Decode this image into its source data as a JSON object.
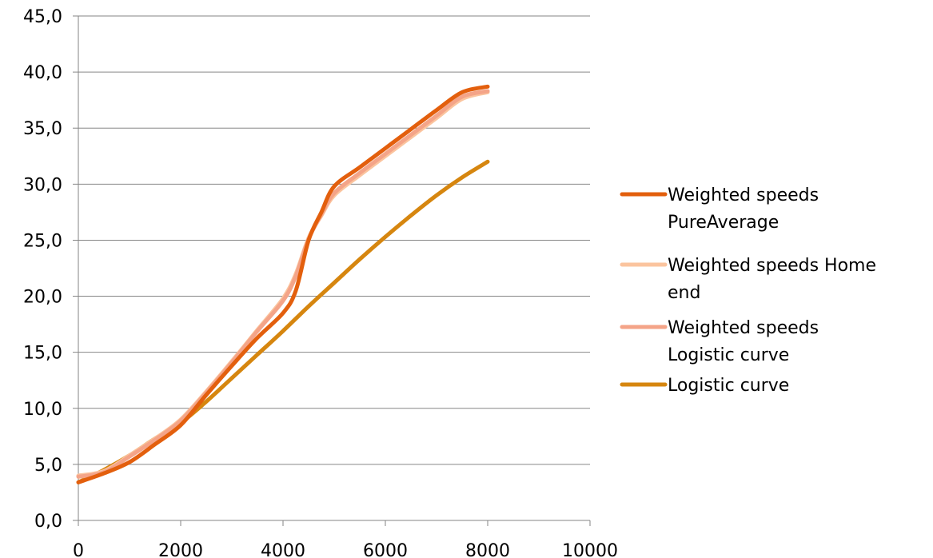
{
  "chart_data": {
    "type": "line",
    "title": "",
    "xlabel": "",
    "ylabel": "",
    "xlim": [
      0,
      10000
    ],
    "ylim": [
      0,
      45
    ],
    "x_ticks": [
      "0",
      "2000",
      "4000",
      "6000",
      "8000",
      "10000"
    ],
    "y_ticks": [
      "0,0",
      "5,0",
      "10,0",
      "15,0",
      "20,0",
      "25,0",
      "30,0",
      "35,0",
      "40,0",
      "45,0"
    ],
    "grid": "horizontal",
    "legend_position": "right",
    "series": [
      {
        "name": "Weighted speeds PureAverage",
        "legend_lines": [
          "Weighted speeds",
          "PureAverage"
        ],
        "color": "#E35F0D",
        "points": [
          [
            0,
            3.4
          ],
          [
            500,
            4.2
          ],
          [
            1000,
            5.2
          ],
          [
            1500,
            6.8
          ],
          [
            2000,
            8.5
          ],
          [
            2500,
            11.2
          ],
          [
            3000,
            13.8
          ],
          [
            3500,
            16.3
          ],
          [
            4000,
            18.5
          ],
          [
            4250,
            20.5
          ],
          [
            4500,
            25.0
          ],
          [
            4750,
            27.5
          ],
          [
            5000,
            29.8
          ],
          [
            5500,
            31.5
          ],
          [
            6000,
            33.2
          ],
          [
            6500,
            34.9
          ],
          [
            7000,
            36.6
          ],
          [
            7500,
            38.2
          ],
          [
            8000,
            38.7
          ]
        ]
      },
      {
        "name": "Weighted speeds Home end",
        "legend_lines": [
          "Weighted speeds Home",
          "end"
        ],
        "color": "#FBC49E",
        "points": [
          [
            0,
            4.0
          ],
          [
            500,
            4.4
          ],
          [
            1000,
            5.8
          ],
          [
            1500,
            7.3
          ],
          [
            2000,
            9.0
          ],
          [
            2500,
            11.5
          ],
          [
            3000,
            14.2
          ],
          [
            3500,
            17.0
          ],
          [
            4000,
            19.8
          ],
          [
            4250,
            22.0
          ],
          [
            4500,
            25.2
          ],
          [
            4750,
            27.2
          ],
          [
            5000,
            29.0
          ],
          [
            5500,
            30.8
          ],
          [
            6000,
            32.5
          ],
          [
            6500,
            34.2
          ],
          [
            7000,
            35.9
          ],
          [
            7500,
            37.6
          ],
          [
            8000,
            38.2
          ]
        ]
      },
      {
        "name": "Weighted speeds Logistic curve",
        "legend_lines": [
          "Weighted speeds",
          "Logistic curve"
        ],
        "color": "#F4A488",
        "points": [
          [
            0,
            3.9
          ],
          [
            500,
            4.3
          ],
          [
            1000,
            5.7
          ],
          [
            1500,
            7.2
          ],
          [
            2000,
            8.9
          ],
          [
            2500,
            11.4
          ],
          [
            3000,
            14.1
          ],
          [
            3500,
            16.9
          ],
          [
            4000,
            19.6
          ],
          [
            4250,
            21.8
          ],
          [
            4500,
            25.1
          ],
          [
            4750,
            27.3
          ],
          [
            5000,
            29.2
          ],
          [
            5500,
            31.0
          ],
          [
            6000,
            32.7
          ],
          [
            6500,
            34.4
          ],
          [
            7000,
            36.1
          ],
          [
            7500,
            37.8
          ],
          [
            8000,
            38.3
          ]
        ]
      },
      {
        "name": "Logistic curve",
        "legend_lines": [
          "Logistic curve"
        ],
        "color": "#D6860F",
        "points": [
          [
            0,
            3.4
          ],
          [
            500,
            4.5
          ],
          [
            1000,
            5.8
          ],
          [
            1500,
            7.3
          ],
          [
            2000,
            8.7
          ],
          [
            2500,
            10.6
          ],
          [
            3000,
            12.7
          ],
          [
            3500,
            14.8
          ],
          [
            4000,
            16.9
          ],
          [
            4500,
            19.1
          ],
          [
            5000,
            21.2
          ],
          [
            5500,
            23.3
          ],
          [
            6000,
            25.3
          ],
          [
            6500,
            27.2
          ],
          [
            7000,
            29.0
          ],
          [
            7500,
            30.6
          ],
          [
            8000,
            32.0
          ]
        ]
      }
    ]
  }
}
